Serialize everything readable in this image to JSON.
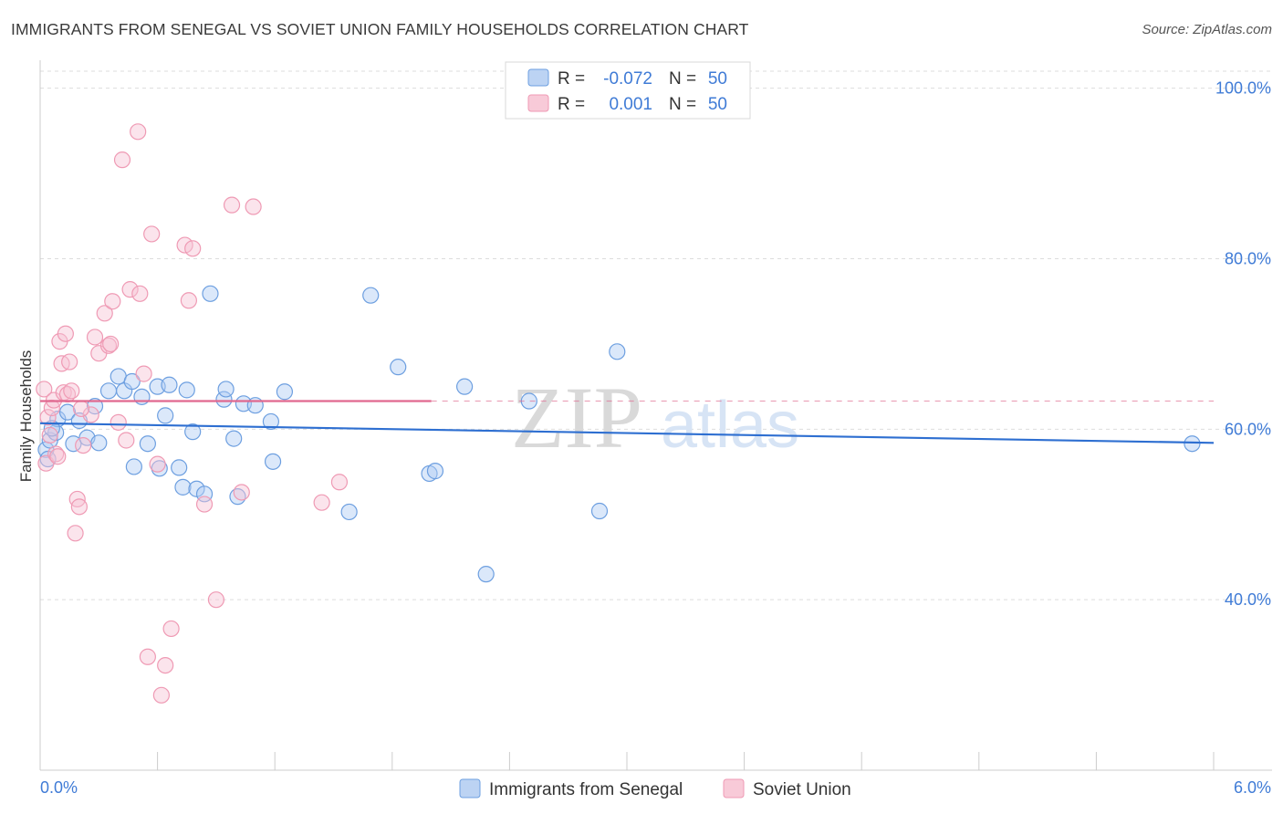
{
  "header": {
    "title": "IMMIGRANTS FROM SENEGAL VS SOVIET UNION FAMILY HOUSEHOLDS CORRELATION CHART",
    "source": "Source: ZipAtlas.com"
  },
  "colors": {
    "blue": "#6d9fe0",
    "blue_line": "#2e6fd1",
    "pink": "#ef9ab4",
    "pink_line": "#e0688f",
    "axis_label": "#3f7bd6",
    "grid": "#dddddd"
  },
  "legend_top": {
    "rows": [
      {
        "r_label": "R =",
        "r_value": "-0.072",
        "n_label": "N =",
        "n_value": "50"
      },
      {
        "r_label": "R =",
        "r_value": "0.001",
        "n_label": "N =",
        "n_value": "50"
      }
    ]
  },
  "watermark": {
    "zip": "ZIP",
    "atlas": "atlas"
  },
  "chart_data": {
    "type": "scatter",
    "xlabel": "",
    "ylabel": "Family Households",
    "xlim": [
      0,
      6
    ],
    "ylim": [
      20,
      102
    ],
    "x_tick_labels": [
      "0.0%",
      "6.0%"
    ],
    "y_ticks": [
      40,
      60,
      80,
      100
    ],
    "y_tick_labels": [
      "40.0%",
      "60.0%",
      "80.0%",
      "100.0%"
    ],
    "grid": true,
    "legend_position": "bottom-center",
    "series": [
      {
        "name": "Immigrants from Senegal",
        "color": "blue",
        "trend": {
          "x": [
            0,
            6
          ],
          "y": [
            60.7,
            58.4
          ]
        },
        "points": [
          [
            0.03,
            57.6
          ],
          [
            0.04,
            56.5
          ],
          [
            0.05,
            58.7
          ],
          [
            0.08,
            59.6
          ],
          [
            0.09,
            61.2
          ],
          [
            0.14,
            62.0
          ],
          [
            0.17,
            58.3
          ],
          [
            0.2,
            61.0
          ],
          [
            0.24,
            59.0
          ],
          [
            0.28,
            62.7
          ],
          [
            0.3,
            58.4
          ],
          [
            0.4,
            66.2
          ],
          [
            0.43,
            64.5
          ],
          [
            0.47,
            65.6
          ],
          [
            0.48,
            55.6
          ],
          [
            0.52,
            63.8
          ],
          [
            0.55,
            58.3
          ],
          [
            0.6,
            65.0
          ],
          [
            0.61,
            55.4
          ],
          [
            0.64,
            61.6
          ],
          [
            0.66,
            65.2
          ],
          [
            0.71,
            55.5
          ],
          [
            0.73,
            53.2
          ],
          [
            0.75,
            64.6
          ],
          [
            0.78,
            59.7
          ],
          [
            0.8,
            53.0
          ],
          [
            0.84,
            52.4
          ],
          [
            0.87,
            75.9
          ],
          [
            0.94,
            63.5
          ],
          [
            0.95,
            64.7
          ],
          [
            0.99,
            58.9
          ],
          [
            1.01,
            52.1
          ],
          [
            1.04,
            63.0
          ],
          [
            1.1,
            62.8
          ],
          [
            1.18,
            60.9
          ],
          [
            1.19,
            56.2
          ],
          [
            1.25,
            64.4
          ],
          [
            1.58,
            50.3
          ],
          [
            1.69,
            75.7
          ],
          [
            1.83,
            67.3
          ],
          [
            1.99,
            54.8
          ],
          [
            2.02,
            55.1
          ],
          [
            2.17,
            65.0
          ],
          [
            2.28,
            43.0
          ],
          [
            2.5,
            63.3
          ],
          [
            2.86,
            50.4
          ],
          [
            2.95,
            69.1
          ],
          [
            5.89,
            58.3
          ],
          [
            0.06,
            60.1
          ],
          [
            0.35,
            64.5
          ]
        ]
      },
      {
        "name": "Soviet Union",
        "color": "pink",
        "trend": {
          "x": [
            0,
            2.0
          ],
          "y": [
            63.3,
            63.3
          ]
        },
        "trend_dashed": {
          "x": [
            2.0,
            6
          ],
          "y": [
            63.3,
            63.3
          ]
        },
        "points": [
          [
            0.02,
            64.7
          ],
          [
            0.03,
            56.0
          ],
          [
            0.04,
            61.4
          ],
          [
            0.05,
            59.3
          ],
          [
            0.06,
            62.5
          ],
          [
            0.07,
            63.4
          ],
          [
            0.08,
            57.1
          ],
          [
            0.1,
            70.3
          ],
          [
            0.11,
            67.7
          ],
          [
            0.12,
            64.3
          ],
          [
            0.13,
            71.2
          ],
          [
            0.14,
            64.1
          ],
          [
            0.15,
            67.9
          ],
          [
            0.16,
            64.5
          ],
          [
            0.18,
            47.8
          ],
          [
            0.19,
            51.8
          ],
          [
            0.2,
            50.9
          ],
          [
            0.22,
            58.1
          ],
          [
            0.26,
            61.7
          ],
          [
            0.28,
            70.8
          ],
          [
            0.3,
            68.9
          ],
          [
            0.33,
            73.6
          ],
          [
            0.35,
            69.8
          ],
          [
            0.37,
            75.0
          ],
          [
            0.4,
            60.8
          ],
          [
            0.42,
            91.6
          ],
          [
            0.44,
            58.7
          ],
          [
            0.46,
            76.4
          ],
          [
            0.5,
            94.9
          ],
          [
            0.51,
            75.9
          ],
          [
            0.53,
            66.5
          ],
          [
            0.55,
            33.3
          ],
          [
            0.57,
            82.9
          ],
          [
            0.6,
            55.9
          ],
          [
            0.62,
            28.8
          ],
          [
            0.64,
            32.3
          ],
          [
            0.67,
            36.6
          ],
          [
            0.74,
            81.6
          ],
          [
            0.76,
            75.1
          ],
          [
            0.78,
            81.2
          ],
          [
            0.84,
            51.2
          ],
          [
            0.9,
            40.0
          ],
          [
            0.98,
            86.3
          ],
          [
            1.03,
            52.6
          ],
          [
            1.09,
            86.1
          ],
          [
            1.44,
            51.4
          ],
          [
            1.53,
            53.8
          ],
          [
            0.09,
            56.8
          ],
          [
            0.21,
            62.4
          ],
          [
            0.36,
            70.0
          ]
        ]
      }
    ]
  }
}
